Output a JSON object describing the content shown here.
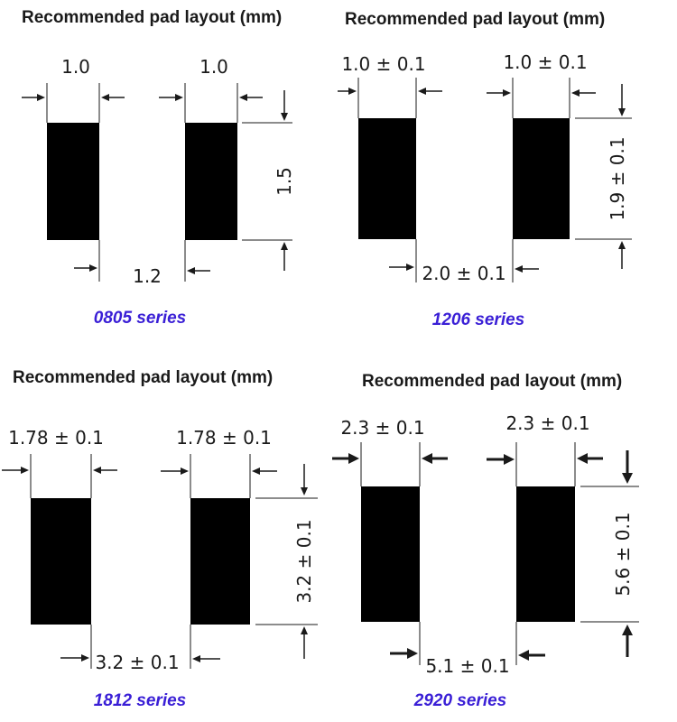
{
  "panels": [
    {
      "title": "Recommended pad layout (mm)",
      "pad_width": "1.0",
      "pad_height": "1.5",
      "pad_gap": "1.2",
      "series": "0805 series"
    },
    {
      "title": "Recommended pad layout (mm)",
      "pad_width": "1.0 ± 0.1",
      "pad_height": "1.9 ± 0.1",
      "pad_gap": "2.0 ± 0.1",
      "series": "1206 series"
    },
    {
      "title": "Recommended pad layout (mm)",
      "pad_width": "1.78 ± 0.1",
      "pad_height": "3.2 ± 0.1",
      "pad_gap": "3.2 ± 0.1",
      "series": "1812 series"
    },
    {
      "title": "Recommended pad layout (mm)",
      "pad_width": "2.3 ± 0.1",
      "pad_height": "5.6 ± 0.1",
      "pad_gap": "5.1 ± 0.1",
      "series": "2920 series"
    }
  ],
  "colors": {
    "pad": "#000000",
    "series_label": "#3a1fd6",
    "text": "#1a1a1a"
  }
}
